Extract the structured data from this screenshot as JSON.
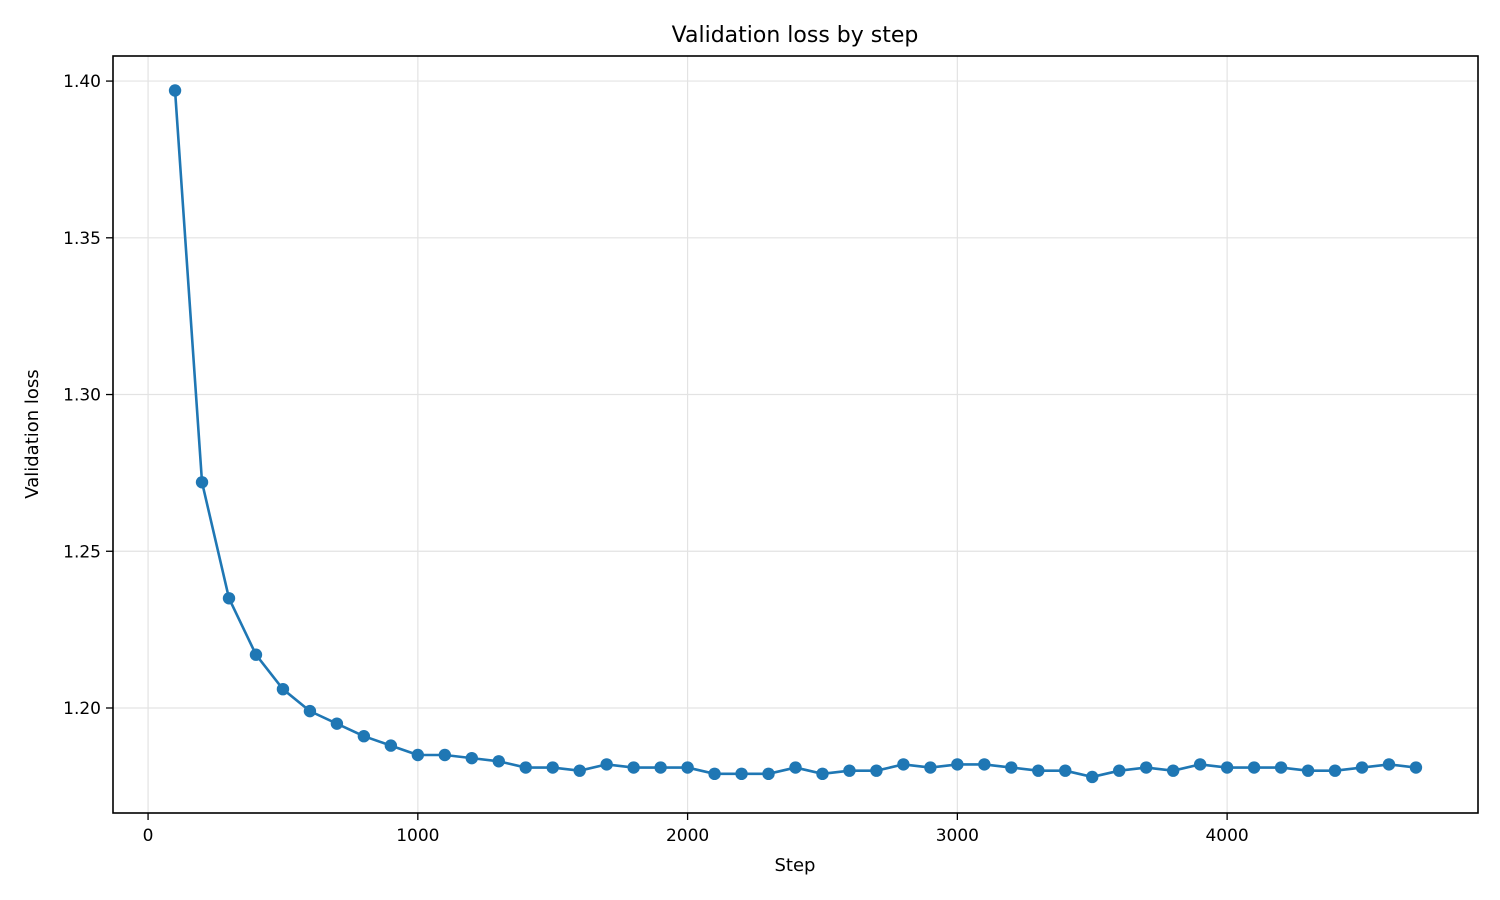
{
  "chart_data": {
    "type": "line",
    "title": "Validation loss by step",
    "xlabel": "Step",
    "ylabel": "Validation loss",
    "xlim": [
      -130,
      4930
    ],
    "ylim": [
      1.1665,
      1.408
    ],
    "x_ticks": [
      0,
      1000,
      2000,
      3000,
      4000
    ],
    "x_tick_labels": [
      "0",
      "1000",
      "2000",
      "3000",
      "4000"
    ],
    "y_ticks": [
      1.2,
      1.25,
      1.3,
      1.35,
      1.4
    ],
    "y_tick_labels": [
      "1.20",
      "1.25",
      "1.30",
      "1.35",
      "1.40"
    ],
    "grid": true,
    "legend": "none",
    "series": [
      {
        "color": "#1f77b4",
        "marker": "circle",
        "x": [
          100,
          200,
          300,
          400,
          500,
          600,
          700,
          800,
          900,
          1000,
          1100,
          1200,
          1300,
          1400,
          1500,
          1600,
          1700,
          1800,
          1900,
          2000,
          2100,
          2200,
          2300,
          2400,
          2500,
          2600,
          2700,
          2800,
          2900,
          3000,
          3100,
          3200,
          3300,
          3400,
          3500,
          3600,
          3700,
          3800,
          3900,
          4000,
          4100,
          4200,
          4300,
          4400,
          4500,
          4600,
          4700
        ],
        "y": [
          1.397,
          1.272,
          1.235,
          1.217,
          1.206,
          1.199,
          1.195,
          1.191,
          1.188,
          1.185,
          1.185,
          1.184,
          1.183,
          1.181,
          1.181,
          1.18,
          1.182,
          1.181,
          1.181,
          1.181,
          1.179,
          1.179,
          1.179,
          1.181,
          1.179,
          1.18,
          1.18,
          1.182,
          1.181,
          1.182,
          1.182,
          1.181,
          1.18,
          1.18,
          1.178,
          1.18,
          1.181,
          1.18,
          1.182,
          1.181,
          1.181,
          1.181,
          1.18,
          1.18,
          1.181,
          1.182,
          1.181
        ]
      }
    ]
  }
}
